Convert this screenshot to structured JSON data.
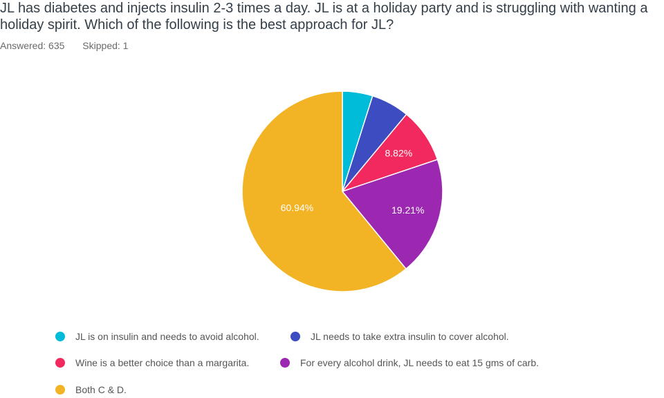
{
  "question": {
    "title": "JL has diabetes and injects insulin 2-3 times a day. JL is at a holiday party and is struggling with wanting a holiday spirit. Which of the following is the best approach for JL?",
    "answered": "Answered: 635",
    "skipped": "Skipped: 1"
  },
  "chart_data": {
    "type": "pie",
    "categories": [
      "JL is on insulin and needs to avoid alcohol.",
      "JL needs to take extra insulin to cover alcohol.",
      "Wine is a better choice than a margarita.",
      "For every alcohol drink, JL needs to eat 15 gms of carb.",
      "Both C & D."
    ],
    "values": [
      4.88,
      6.15,
      8.82,
      19.21,
      60.94
    ],
    "data_labels": [
      "",
      "",
      "8.82%",
      "19.21%",
      "60.94%"
    ],
    "colors": [
      "#00bcd8",
      "#3d4cc0",
      "#f2295e",
      "#9c27b0",
      "#f2b325"
    ],
    "legend_placement": "bottom"
  }
}
